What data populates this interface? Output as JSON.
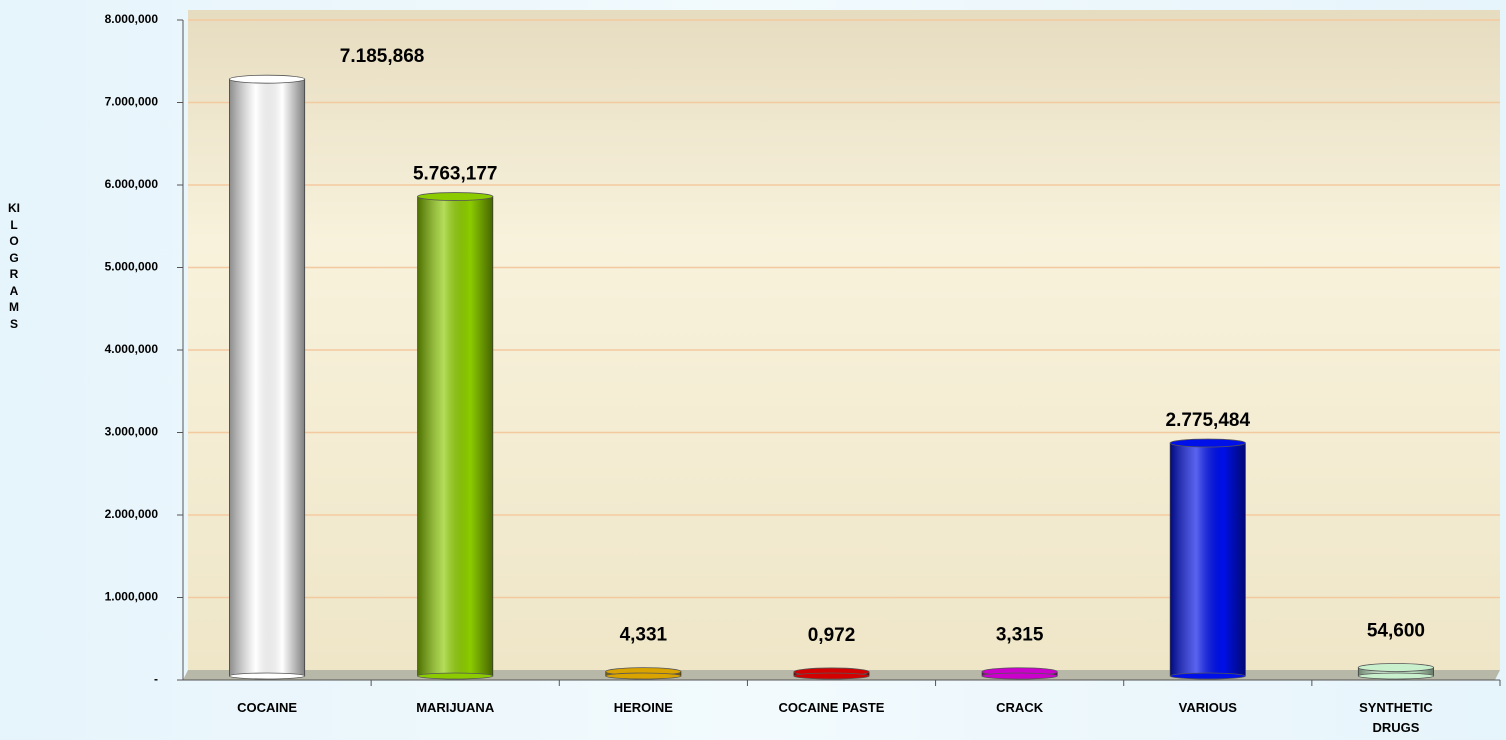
{
  "chart_data": {
    "type": "bar",
    "y_label": "KILOGRAMS",
    "categories": [
      "COCAINE",
      "MARIJUANA",
      "HEROINE",
      "COCAINE PASTE",
      "CRACK",
      "VARIOUS",
      "SYNTHETIC DRUGS"
    ],
    "values": [
      7185.868,
      5763.177,
      4.331,
      0.972,
      3.315,
      2775.484,
      54.6
    ],
    "value_labels": [
      "7.185,868",
      "5.763,177",
      "4,331",
      "0,972",
      "3,315",
      "2.775,484",
      "54,600"
    ],
    "colors": [
      "#ffffff",
      "#8ccb00",
      "#d9a400",
      "#d40000",
      "#cc00cc",
      "#0010e8",
      "#c8f0cc"
    ],
    "ylim": [
      0,
      8000
    ],
    "yticks": [
      {
        "value": 0,
        "label": "-"
      },
      {
        "value": 1000,
        "label": "1.000,000"
      },
      {
        "value": 2000,
        "label": "2.000,000"
      },
      {
        "value": 3000,
        "label": "3.000,000"
      },
      {
        "value": 4000,
        "label": "4.000,000"
      },
      {
        "value": 5000,
        "label": "5.000,000"
      },
      {
        "value": 6000,
        "label": "6.000,000"
      },
      {
        "value": 7000,
        "label": "7.000,000"
      },
      {
        "value": 8000,
        "label": "8.000,000"
      }
    ],
    "grid": true
  }
}
